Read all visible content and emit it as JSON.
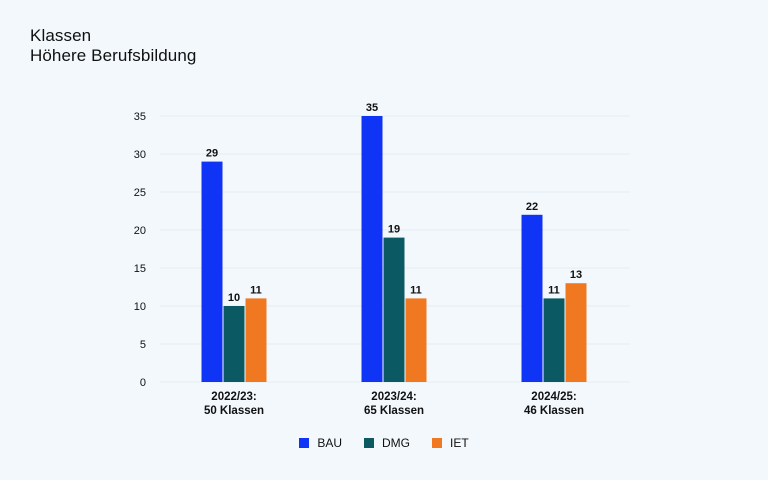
{
  "header": {
    "title_line1": "Klassen",
    "title_line2": "Höhere Berufsbildung"
  },
  "colors": {
    "BAU": "#1034f5",
    "DMG": "#0b5a63",
    "IET": "#f07820",
    "grid": "#e6eef4",
    "text": "#111111"
  },
  "chart_data": {
    "type": "bar",
    "categories": [
      [
        "2022/23:",
        "50 Klassen"
      ],
      [
        "2023/24:",
        "65 Klassen"
      ],
      [
        "2024/25:",
        "46 Klassen"
      ]
    ],
    "series": [
      {
        "name": "BAU",
        "values": [
          29,
          35,
          22
        ]
      },
      {
        "name": "DMG",
        "values": [
          10,
          19,
          11
        ]
      },
      {
        "name": "IET",
        "values": [
          11,
          11,
          13
        ]
      }
    ],
    "yticks": [
      0,
      5,
      10,
      15,
      20,
      25,
      30,
      35
    ],
    "ylim": [
      0,
      35
    ],
    "grid": true,
    "legend_position": "bottom-center",
    "title": "Klassen Höhere Berufsbildung",
    "xlabel": "",
    "ylabel": ""
  }
}
